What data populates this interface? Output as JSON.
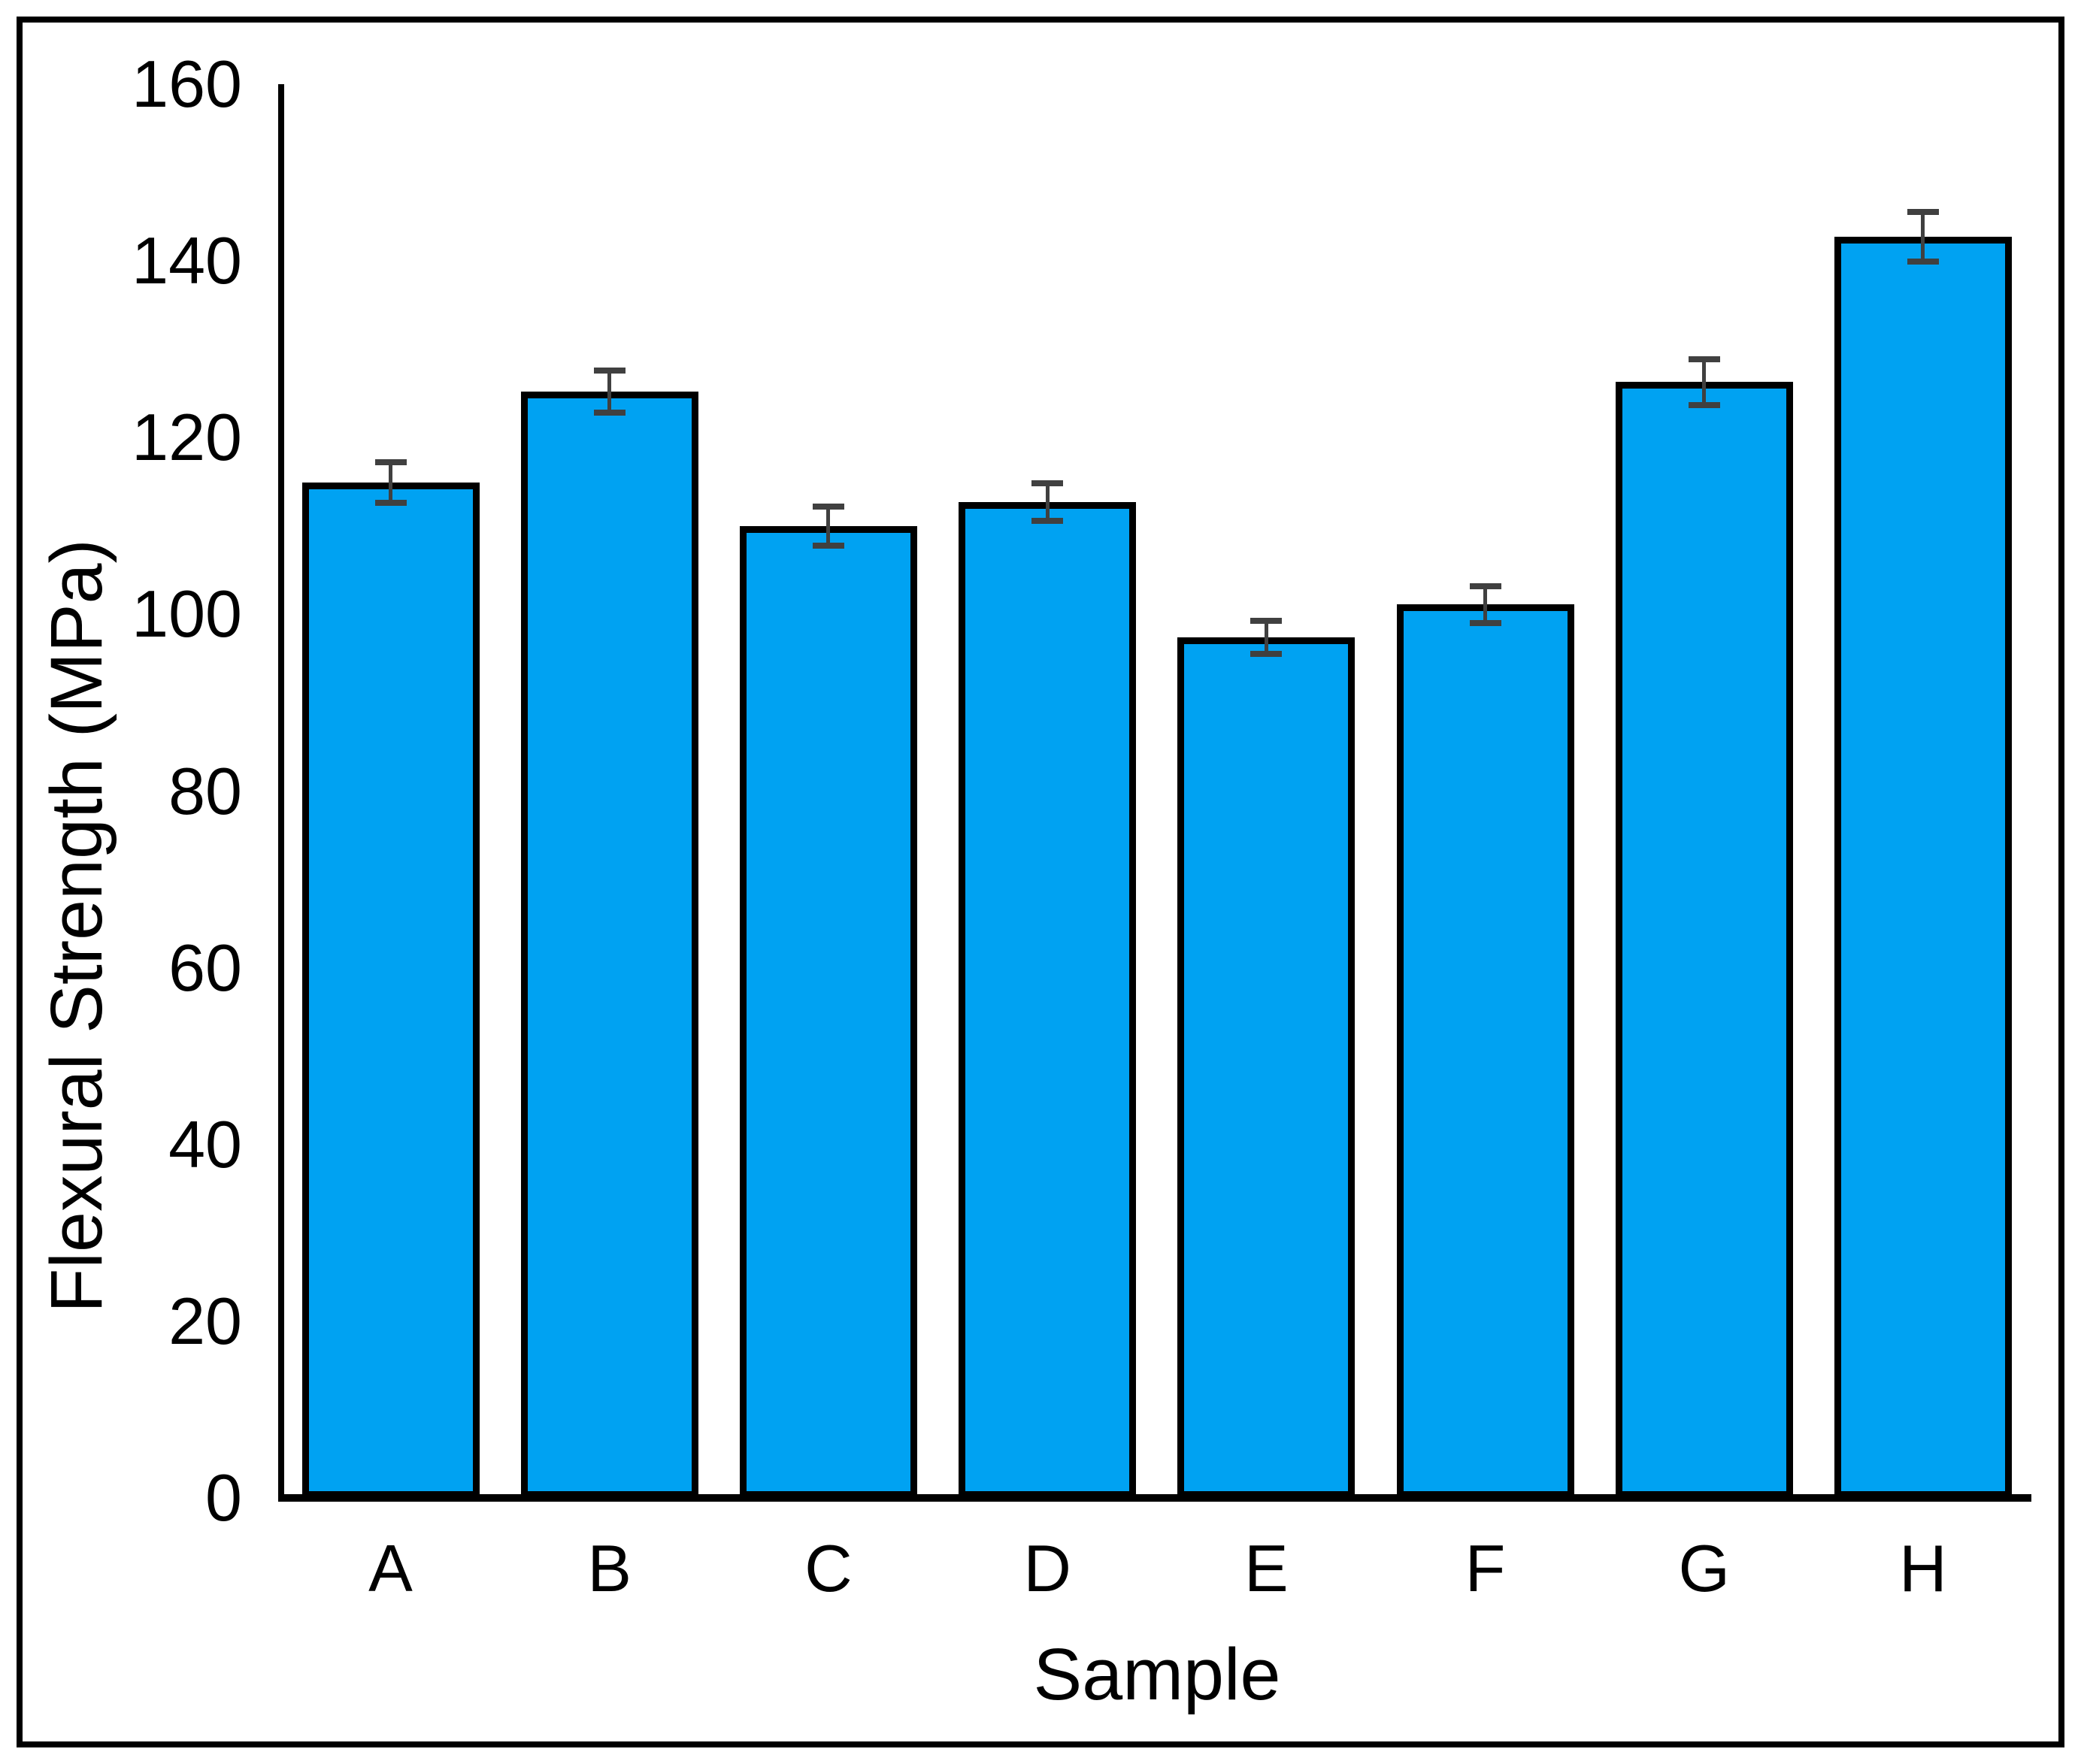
{
  "chart_data": {
    "type": "bar",
    "title": "",
    "xlabel": "Sample",
    "ylabel": "Flexural Strength (MPa)",
    "categories": [
      "A",
      "B",
      "C",
      "D",
      "E",
      "F",
      "G",
      "H"
    ],
    "series": [
      {
        "name": "Flexural Strength",
        "values": [
          114.9,
          125.2,
          110.0,
          112.7,
          97.4,
          101.1,
          126.3,
          142.7
        ],
        "errors": [
          2.3,
          2.4,
          2.2,
          2.1,
          1.9,
          2.1,
          2.6,
          2.8
        ]
      }
    ],
    "ylim": [
      0,
      160
    ],
    "yticks": [
      0,
      20,
      40,
      60,
      80,
      100,
      120,
      140,
      160
    ],
    "grid": false,
    "legend": false,
    "colors": {
      "bar_fill": "#00A2F2",
      "bar_border": "#000000",
      "error_bar": "#404040",
      "axis": "#000000",
      "frame": "#000000",
      "background": "#ffffff"
    }
  }
}
